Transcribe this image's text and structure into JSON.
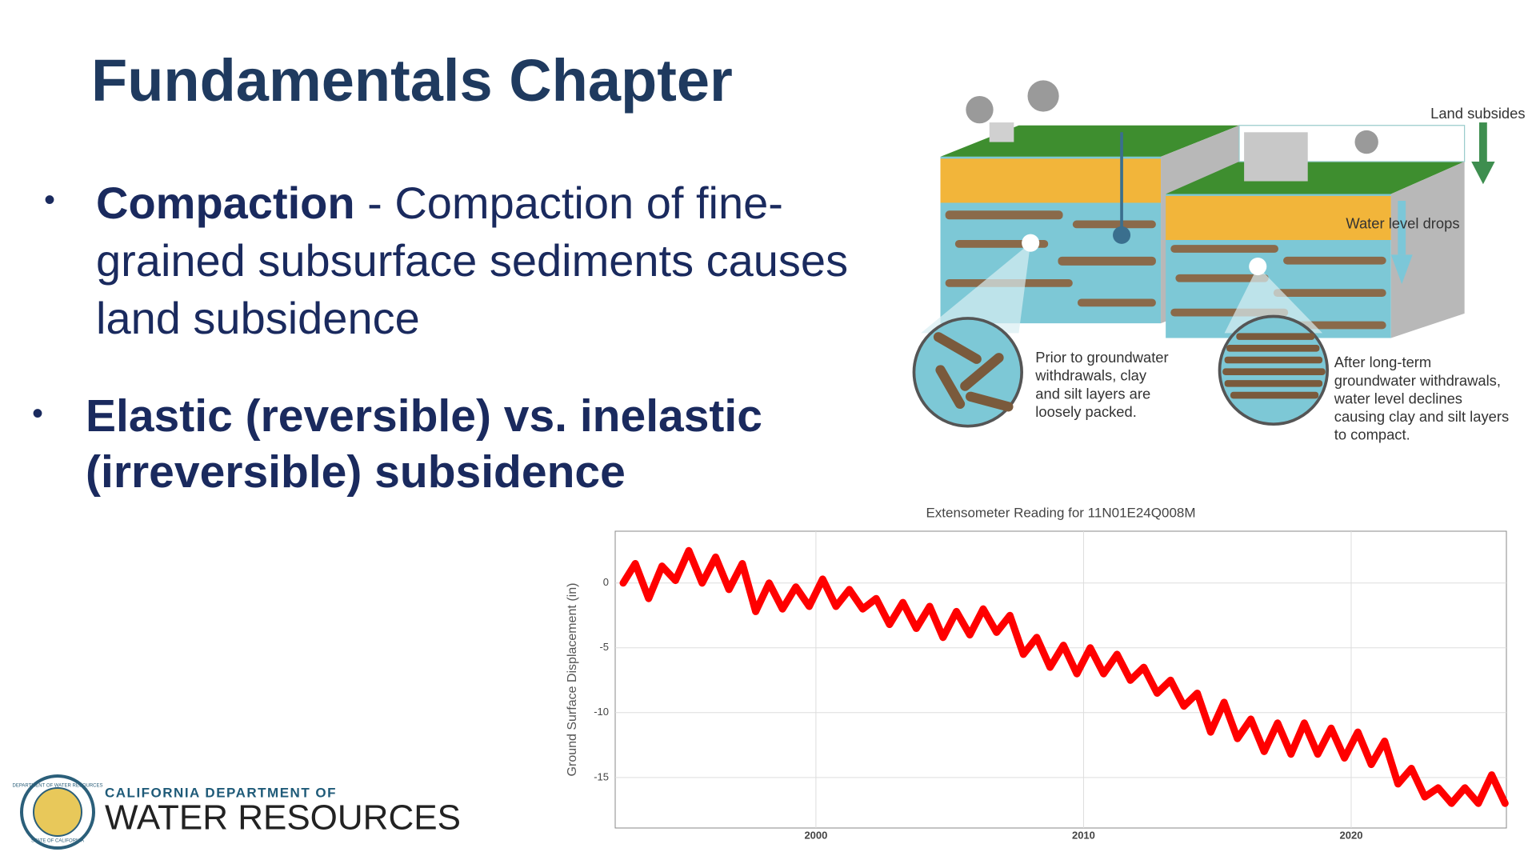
{
  "header": {
    "title": "Fundamentals Chapter"
  },
  "bullets": [
    {
      "term": "Compaction",
      "text": "- Compaction of fine-grained subsurface sediments causes land subsidence"
    },
    {
      "text": "Elastic (reversible) vs. inelastic (irreversible) subsidence"
    }
  ],
  "diagram": {
    "land_label": "Land subsides",
    "water_label": "Water level drops",
    "before_caption": [
      "Prior to groundwater",
      "withdrawals, clay",
      "and silt layers are",
      "loosely packed."
    ],
    "after_caption": [
      "After long-term",
      "groundwater withdrawals,",
      "water level declines",
      "causing clay and silt layers",
      "to compact."
    ]
  },
  "logo": {
    "seal_top": "DEPARTMENT OF WATER RESOURCES",
    "seal_bottom": "STATE OF CALIFORNIA",
    "line1": "CALIFORNIA DEPARTMENT OF",
    "line2": "WATER RESOURCES"
  },
  "chart_data": {
    "type": "line",
    "title": "Extensometer Reading for 11N01E24Q008M",
    "y_label": "Ground Surface Displacement (in)",
    "color": "#ff0000",
    "grid": true,
    "xlim": [
      1992.5,
      2025.8
    ],
    "xticks": [
      2000,
      2010,
      2020
    ],
    "ylim": [
      -18.9,
      4.0
    ],
    "yticks": [
      0,
      -5,
      -10,
      -15
    ],
    "x": [
      1992.8,
      1993.25,
      1993.75,
      1994.25,
      1994.75,
      1995.25,
      1995.75,
      1996.25,
      1996.75,
      1997.25,
      1997.75,
      1998.25,
      1998.75,
      1999.25,
      1999.75,
      2000.25,
      2000.75,
      2001.25,
      2001.75,
      2002.25,
      2002.75,
      2003.25,
      2003.75,
      2004.25,
      2004.75,
      2005.25,
      2005.75,
      2006.25,
      2006.75,
      2007.25,
      2007.75,
      2008.25,
      2008.75,
      2009.25,
      2009.75,
      2010.25,
      2010.75,
      2011.25,
      2011.75,
      2012.25,
      2012.75,
      2013.25,
      2013.75,
      2014.25,
      2014.75,
      2015.25,
      2015.75,
      2016.25,
      2016.75,
      2017.25,
      2017.75,
      2018.25,
      2018.75,
      2019.25,
      2019.75,
      2020.25,
      2020.75,
      2021.25,
      2021.75,
      2022.25,
      2022.75,
      2023.25,
      2023.75,
      2024.25,
      2024.75,
      2025.25,
      2025.75
    ],
    "values": [
      0,
      1.5,
      -1.2,
      1.3,
      0.2,
      2.5,
      0.0,
      2.0,
      -0.5,
      1.5,
      -2.2,
      0.0,
      -2.0,
      -0.3,
      -1.8,
      0.3,
      -1.8,
      -0.5,
      -2.0,
      -1.2,
      -3.2,
      -1.5,
      -3.5,
      -1.8,
      -4.2,
      -2.2,
      -4.0,
      -2.0,
      -3.8,
      -2.5,
      -5.5,
      -4.2,
      -6.5,
      -4.8,
      -7.0,
      -5.0,
      -7.0,
      -5.5,
      -7.5,
      -6.5,
      -8.5,
      -7.5,
      -9.5,
      -8.5,
      -11.5,
      -9.2,
      -12.0,
      -10.5,
      -13.0,
      -10.8,
      -13.2,
      -10.8,
      -13.2,
      -11.2,
      -13.5,
      -11.5,
      -14.0,
      -12.2,
      -15.5,
      -14.3,
      -16.5,
      -15.8,
      -17.0,
      -15.8,
      -17.0,
      -14.8,
      -17.0
    ]
  }
}
